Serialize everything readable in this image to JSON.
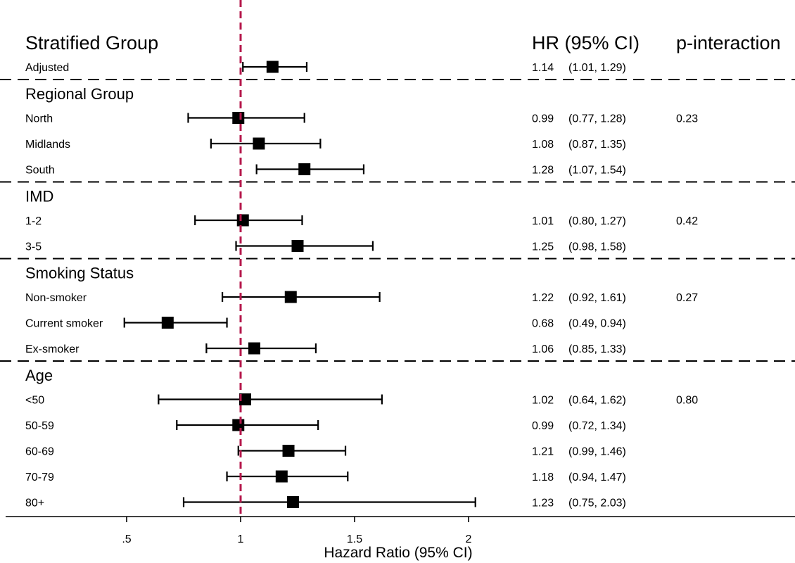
{
  "chart_data": {
    "type": "forest",
    "headers": {
      "group": "Stratified Group",
      "hr": "HR (95% CI)",
      "p": "p-interaction"
    },
    "xlabel": "Hazard Ratio (95% CI)",
    "xlim": [
      0.5,
      2.0
    ],
    "xticks": [
      {
        "value": 0.5,
        "label": ".5"
      },
      {
        "value": 1.0,
        "label": "1"
      },
      {
        "value": 1.5,
        "label": "1.5"
      },
      {
        "value": 2.0,
        "label": "2"
      }
    ],
    "reference_line": 1.0,
    "reference_color": "#b5174b",
    "adjusted": {
      "label": "Adjusted",
      "hr": 1.14,
      "lo": 1.01,
      "hi": 1.29,
      "hr_text": "1.14",
      "ci_text": "(1.01, 1.29)"
    },
    "groups": [
      {
        "title": "Regional Group",
        "p_interaction": "0.23",
        "rows": [
          {
            "label": "North",
            "hr": 0.99,
            "lo": 0.77,
            "hi": 1.28,
            "hr_text": "0.99",
            "ci_text": "(0.77, 1.28)"
          },
          {
            "label": "Midlands",
            "hr": 1.08,
            "lo": 0.87,
            "hi": 1.35,
            "hr_text": "1.08",
            "ci_text": "(0.87, 1.35)"
          },
          {
            "label": "South",
            "hr": 1.28,
            "lo": 1.07,
            "hi": 1.54,
            "hr_text": "1.28",
            "ci_text": "(1.07, 1.54)"
          }
        ]
      },
      {
        "title": "IMD",
        "p_interaction": "0.42",
        "rows": [
          {
            "label": "1-2",
            "hr": 1.01,
            "lo": 0.8,
            "hi": 1.27,
            "hr_text": "1.01",
            "ci_text": "(0.80, 1.27)"
          },
          {
            "label": "3-5",
            "hr": 1.25,
            "lo": 0.98,
            "hi": 1.58,
            "hr_text": "1.25",
            "ci_text": "(0.98, 1.58)"
          }
        ]
      },
      {
        "title": "Smoking Status",
        "p_interaction": "0.27",
        "rows": [
          {
            "label": "Non-smoker",
            "hr": 1.22,
            "lo": 0.92,
            "hi": 1.61,
            "hr_text": "1.22",
            "ci_text": "(0.92, 1.61)"
          },
          {
            "label": "Current smoker",
            "hr": 0.68,
            "lo": 0.49,
            "hi": 0.94,
            "hr_text": "0.68",
            "ci_text": "(0.49, 0.94)"
          },
          {
            "label": "Ex-smoker",
            "hr": 1.06,
            "lo": 0.85,
            "hi": 1.33,
            "hr_text": "1.06",
            "ci_text": "(0.85, 1.33)"
          }
        ]
      },
      {
        "title": "Age",
        "p_interaction": "0.80",
        "rows": [
          {
            "label": "<50",
            "hr": 1.02,
            "lo": 0.64,
            "hi": 1.62,
            "hr_text": "1.02",
            "ci_text": "(0.64, 1.62)"
          },
          {
            "label": "50-59",
            "hr": 0.99,
            "lo": 0.72,
            "hi": 1.34,
            "hr_text": "0.99",
            "ci_text": "(0.72, 1.34)"
          },
          {
            "label": "60-69",
            "hr": 1.21,
            "lo": 0.99,
            "hi": 1.46,
            "hr_text": "1.21",
            "ci_text": "(0.99, 1.46)"
          },
          {
            "label": "70-79",
            "hr": 1.18,
            "lo": 0.94,
            "hi": 1.47,
            "hr_text": "1.18",
            "ci_text": "(0.94, 1.47)"
          },
          {
            "label": "80+",
            "hr": 1.23,
            "lo": 0.75,
            "hi": 2.03,
            "hr_text": "1.23",
            "ci_text": "(0.75, 2.03)"
          }
        ]
      }
    ]
  }
}
